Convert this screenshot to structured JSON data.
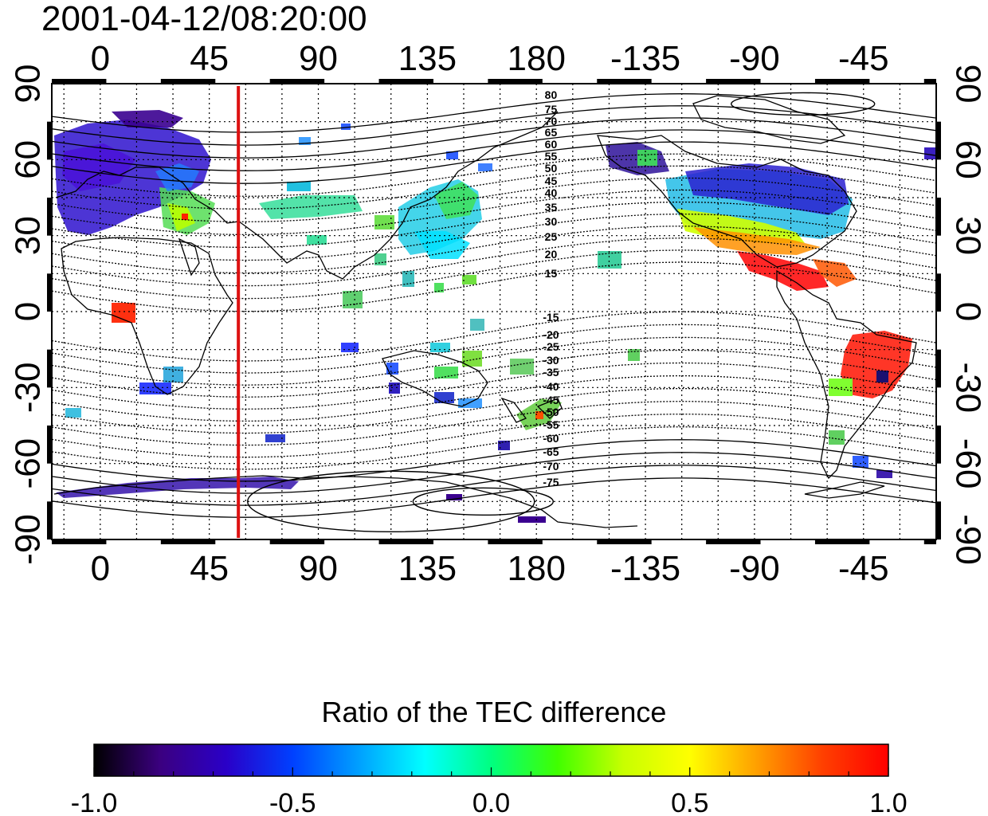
{
  "title": "2001-04-12/08:20:00",
  "map": {
    "x_tick_labels": [
      "0",
      "45",
      "90",
      "135",
      "180",
      "-135",
      "-90",
      "-45"
    ],
    "x_tick_longitudes": [
      0,
      45,
      90,
      135,
      180,
      225,
      270,
      315
    ],
    "y_tick_labels": [
      "90",
      "60",
      "30",
      "0",
      "-30",
      "-60",
      "-90"
    ],
    "y_tick_latitudes": [
      90,
      60,
      30,
      0,
      -30,
      -60,
      -90
    ],
    "lon_range": [
      -20,
      345
    ],
    "lat_range": [
      -90,
      90
    ],
    "marker_line_longitude": 57,
    "marker_line_color": "#dd1111",
    "contour_labels_north": [
      "80",
      "75",
      "70",
      "65",
      "60",
      "55",
      "50",
      "45",
      "40",
      "35",
      "30",
      "25",
      "20",
      "15"
    ],
    "contour_labels_south": [
      "-15",
      "-20",
      "-25",
      "-30",
      "-35",
      "-40",
      "-45",
      "-50",
      "-55",
      "-60",
      "-65",
      "-70",
      "-75"
    ],
    "contour_label_longitude": 186
  },
  "colorbar": {
    "title": "Ratio of the TEC difference",
    "tick_labels": [
      "-1.0",
      "-0.5",
      "0.0",
      "0.5",
      "1.0"
    ],
    "range": [
      -1.0,
      1.0
    ],
    "colors": [
      "#000000",
      "#3b0080",
      "#2a00c8",
      "#0040ff",
      "#00a0ff",
      "#00ffff",
      "#00ff80",
      "#40ff00",
      "#c8ff00",
      "#ffff00",
      "#ffa000",
      "#ff4000",
      "#ff0000"
    ]
  }
}
